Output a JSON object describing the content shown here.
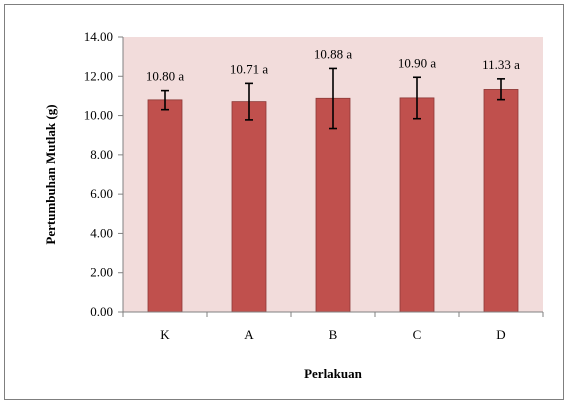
{
  "chart_data": {
    "type": "bar",
    "categories": [
      "K",
      "A",
      "B",
      "C",
      "D"
    ],
    "values": [
      10.8,
      10.71,
      10.88,
      10.9,
      11.33
    ],
    "error_low": [
      10.3,
      9.78,
      9.34,
      9.84,
      10.81
    ],
    "error_high": [
      11.27,
      11.64,
      12.4,
      11.95,
      11.87
    ],
    "data_labels": [
      "10.80 a",
      "10.71 a",
      "10.88 a",
      "10.90 a",
      "11.33 a"
    ],
    "title": "",
    "xlabel": "Perlakuan",
    "ylabel": "Pertumbuhan Mutlak (g)",
    "ylim": [
      0,
      14
    ],
    "yticks": [
      "0.00",
      "2.00",
      "4.00",
      "6.00",
      "8.00",
      "10.00",
      "12.00",
      "14.00"
    ],
    "grid": false,
    "legend": "none",
    "colors": {
      "plot_bg": "#f2dcdb",
      "bar_fill": "#c0504d",
      "bar_stroke": "#8c3836",
      "axis": "#808080"
    }
  }
}
